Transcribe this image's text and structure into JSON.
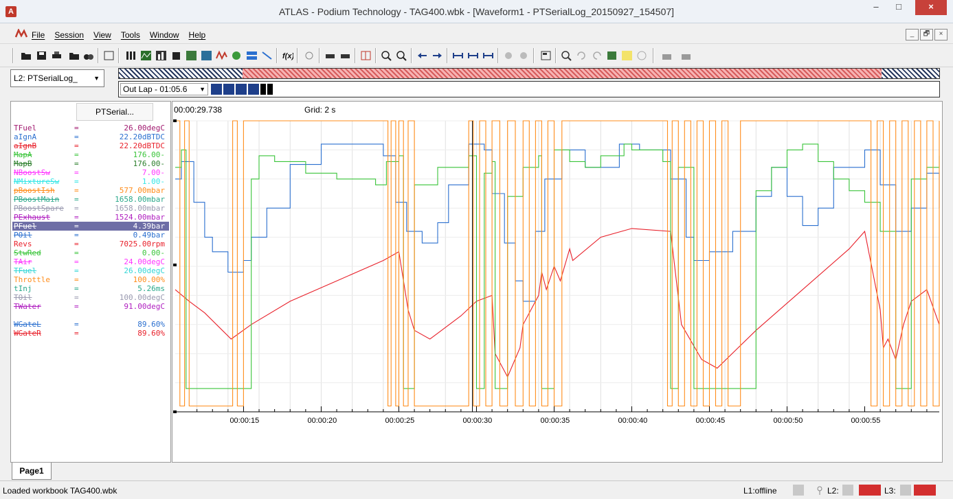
{
  "window": {
    "app_icon_letter": "A",
    "title": "ATLAS - Podium Technology - TAG400.wbk - [Waveform1 - PTSerialLog_20150927_154507]",
    "minimize": "–",
    "maximize": "□",
    "close": "×"
  },
  "menu": {
    "items": [
      "File",
      "Session",
      "View",
      "Tools",
      "Window",
      "Help"
    ],
    "mdi": [
      "_",
      "🗗",
      "×"
    ]
  },
  "lap": {
    "selected_log": "L2: PTSerialLog_",
    "outlap": "Out Lap - 01:05.6"
  },
  "channels_header": "PTSerial...",
  "channels": [
    {
      "name": "TFuel",
      "value": "26.00degC",
      "color": "#a0186e",
      "strike": false
    },
    {
      "name": "aIgnA",
      "value": "22.20dBTDC",
      "color": "#2a6fcf",
      "strike": false
    },
    {
      "name": "aIgnB",
      "value": "22.20dBTDC",
      "color": "#e8202a",
      "strike": true
    },
    {
      "name": "MapA",
      "value": "176.00-",
      "color": "#39c439",
      "strike": true
    },
    {
      "name": "MapB",
      "value": "176.00-",
      "color": "#2a7d2a",
      "strike": true
    },
    {
      "name": "NBoostSw",
      "value": "7.00-",
      "color": "#ff33ff",
      "strike": true
    },
    {
      "name": "NMixtureSw",
      "value": "1.00-",
      "color": "#33e6e6",
      "strike": true
    },
    {
      "name": "pBoostIsh",
      "value": "577.00mbar",
      "color": "#ff8c1a",
      "strike": true
    },
    {
      "name": "PBoostMain",
      "value": "1658.00mbar",
      "color": "#2aa88a",
      "strike": true
    },
    {
      "name": "PBoostSpare",
      "value": "1658.00mbar",
      "color": "#9a9ab0",
      "strike": true
    },
    {
      "name": "PExhaust",
      "value": "1524.00mbar",
      "color": "#b020c0",
      "strike": true
    },
    {
      "name": "PFuel",
      "value": "4.39bar",
      "color": "#ffffff",
      "strike": true,
      "selected": true
    },
    {
      "name": "POil",
      "value": "0.49bar",
      "color": "#2a6fcf",
      "strike": true
    },
    {
      "name": "Revs",
      "value": "7025.00rpm",
      "color": "#e8202a",
      "strike": false
    },
    {
      "name": "StwRed",
      "value": "0.00-",
      "color": "#39c439",
      "strike": true
    },
    {
      "name": "TAir",
      "value": "24.00degC",
      "color": "#ff33ff",
      "strike": true
    },
    {
      "name": "TFuel",
      "value": "26.00degC",
      "color": "#33d6d6",
      "strike": true
    },
    {
      "name": "Throttle",
      "value": "100.00%",
      "color": "#ff8c1a",
      "strike": false
    },
    {
      "name": "tInj",
      "value": "5.26ms",
      "color": "#2aa88a",
      "strike": false
    },
    {
      "name": "TOil",
      "value": "100.00degC",
      "color": "#9a9ab0",
      "strike": true
    },
    {
      "name": "TWater",
      "value": "91.00degC",
      "color": "#b020c0",
      "strike": true
    },
    {
      "name": "",
      "value": "",
      "color": "#000000",
      "strike": false
    },
    {
      "name": "WGateL",
      "value": "89.60%",
      "color": "#2a6fcf",
      "strike": true
    },
    {
      "name": "WGateR",
      "value": "89.60%",
      "color": "#e8202a",
      "strike": true
    }
  ],
  "plot": {
    "cursor_time": "00:00:29.738",
    "grid": "Grid: 2 s",
    "x_ticks": [
      "00:00:15",
      "00:00:20",
      "00:00:25",
      "00:00:30",
      "00:00:35",
      "00:00:40",
      "00:00:45",
      "00:00:50",
      "00:00:55"
    ]
  },
  "chart_data": {
    "type": "line",
    "x_range_s": [
      10.6,
      59.8
    ],
    "cursor_s": 29.738,
    "grid_step_s": 2,
    "series": [
      {
        "color": "#e8202a",
        "x": [
          10.6,
          11.5,
          12.5,
          14.2,
          15.5,
          18,
          21,
          24,
          25,
          25.6,
          26,
          27,
          29,
          30,
          31,
          31.2,
          32,
          32.8,
          33,
          34,
          34.2,
          34.5,
          35,
          35.4,
          36,
          36.2,
          38,
          40,
          42.5,
          43.2,
          44.5,
          45.5,
          48,
          51,
          54,
          55,
          56,
          56.2,
          56.5,
          57,
          57.5,
          58,
          59,
          59.8
        ],
        "values": [
          42,
          38,
          34,
          25,
          30,
          38,
          45,
          52,
          55,
          35,
          28,
          25,
          33,
          38,
          40,
          20,
          12,
          22,
          30,
          40,
          48,
          42,
          50,
          45,
          56,
          52,
          60,
          63,
          62,
          30,
          18,
          15,
          28,
          42,
          56,
          62,
          35,
          22,
          25,
          18,
          30,
          38,
          42,
          30
        ]
      },
      {
        "color": "#2a6fcf",
        "x": [
          10.6,
          11,
          11.8,
          12.5,
          13,
          14,
          15,
          15.5,
          16.5,
          18,
          20,
          24,
          24.8,
          25.5,
          26.5,
          27.5,
          28.2,
          29.5,
          30.5,
          31,
          31.8,
          32.5,
          33,
          33.8,
          34.4,
          35.5,
          37,
          39.2,
          40.5,
          42.5,
          43.5,
          44,
          45,
          46.5,
          48,
          49,
          50,
          51,
          52,
          53,
          55,
          56,
          57,
          58,
          59,
          59.8
        ],
        "values": [
          80,
          86,
          72,
          60,
          55,
          48,
          52,
          60,
          70,
          85,
          92,
          88,
          72,
          62,
          58,
          65,
          78,
          92,
          90,
          75,
          58,
          45,
          38,
          62,
          80,
          90,
          84,
          92,
          90,
          80,
          60,
          52,
          55,
          62,
          74,
          84,
          74,
          64,
          70,
          84,
          90,
          78,
          62,
          70,
          82,
          70
        ]
      },
      {
        "color": "#39c439",
        "x": [
          10.6,
          11,
          11.3,
          12,
          14,
          14.2,
          15.5,
          16,
          17,
          19,
          21,
          23.5,
          24.2,
          25,
          25.3,
          26,
          27.5,
          29.5,
          30,
          30.5,
          31,
          31.2,
          32,
          33,
          34,
          34.2,
          35,
          36,
          37,
          38,
          39.5,
          40,
          42,
          42.5,
          43,
          44,
          45,
          47,
          48,
          49,
          50,
          51,
          52,
          53,
          54,
          55,
          56,
          57,
          58,
          59,
          59.8
        ],
        "values": [
          84,
          90,
          8,
          8,
          8,
          8,
          80,
          88,
          86,
          82,
          80,
          78,
          86,
          88,
          8,
          78,
          84,
          88,
          8,
          82,
          86,
          8,
          74,
          84,
          88,
          8,
          90,
          86,
          84,
          88,
          92,
          90,
          86,
          8,
          84,
          8,
          8,
          8,
          76,
          84,
          90,
          92,
          86,
          80,
          76,
          72,
          62,
          8,
          80,
          84,
          88
        ]
      },
      {
        "color": "#ff8c1a",
        "x": [
          10.6,
          10.9,
          11.2,
          11.5,
          12,
          14,
          14.3,
          14.6,
          15,
          24,
          24.3,
          24.5,
          24.8,
          25,
          25.3,
          25.6,
          26,
          26.4,
          27,
          28,
          29,
          29.5,
          29.8,
          30.2,
          30.6,
          31,
          31.5,
          32,
          32.5,
          33,
          33.4,
          33.8,
          34.2,
          34.6,
          35,
          35.5,
          36,
          37,
          39,
          40,
          41,
          42,
          42.3,
          42.6,
          43,
          43.4,
          43.8,
          44.2,
          44.6,
          45,
          45.4,
          45.8,
          46.2,
          47,
          48,
          49,
          50,
          51,
          52,
          53,
          54,
          55,
          55.4,
          55.8,
          56.2,
          56.6,
          57,
          57.4,
          57.8,
          58.2,
          58.6,
          59,
          59.4,
          59.8
        ],
        "values": [
          100,
          2,
          100,
          2,
          2,
          2,
          100,
          2,
          100,
          100,
          2,
          100,
          2,
          100,
          2,
          100,
          2,
          2,
          2,
          2,
          2,
          100,
          2,
          100,
          2,
          100,
          2,
          100,
          2,
          100,
          2,
          100,
          2,
          100,
          2,
          100,
          100,
          100,
          100,
          100,
          100,
          100,
          2,
          100,
          2,
          100,
          2,
          100,
          2,
          100,
          2,
          100,
          2,
          100,
          100,
          100,
          100,
          100,
          100,
          100,
          100,
          100,
          2,
          100,
          2,
          100,
          2,
          100,
          2,
          100,
          2,
          100,
          2,
          100
        ]
      }
    ]
  }
}
